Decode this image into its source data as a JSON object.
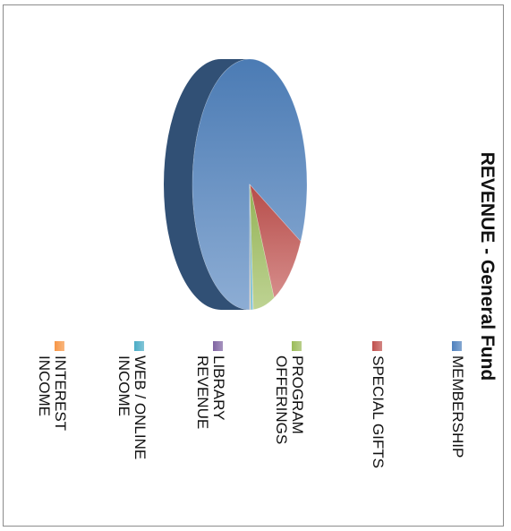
{
  "chart_data": {
    "type": "pie",
    "title": "REVENUE - General Fund",
    "legend_position": "bottom",
    "slices": [
      {
        "name": "MEMBERSHIP",
        "label_lines": [
          "MEMBERSHIP"
        ],
        "value": 82.5,
        "color": "#4f81bd"
      },
      {
        "name": "SPECIAL GIFTS",
        "label_lines": [
          "SPECIAL GIFTS"
        ],
        "value": 10.5,
        "color": "#c0504d"
      },
      {
        "name": "PROGRAM OFFERINGS",
        "label_lines": [
          "PROGRAM",
          "OFFERINGS"
        ],
        "value": 6.0,
        "color": "#9bbb59"
      },
      {
        "name": "LIBRARY REVENUE",
        "label_lines": [
          "LIBRARY",
          "REVENUE"
        ],
        "value": 0.1,
        "color": "#8064a2"
      },
      {
        "name": "WEB / ONLINE INCOME",
        "label_lines": [
          "WEB / ONLINE",
          "INCOME"
        ],
        "value": 0.7,
        "color": "#4bacc6"
      },
      {
        "name": "INTEREST INCOME",
        "label_lines": [
          "INTEREST",
          "INCOME"
        ],
        "value": 0.2,
        "color": "#f79646"
      }
    ]
  }
}
